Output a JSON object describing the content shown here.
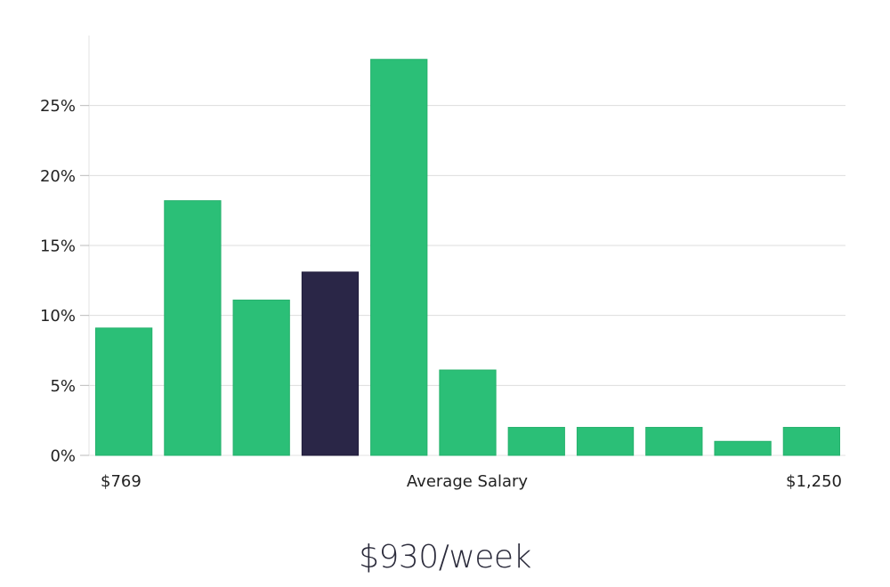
{
  "chart_data": {
    "type": "bar",
    "values": [
      9.1,
      18.2,
      11.1,
      13.1,
      28.3,
      6.1,
      2.0,
      2.0,
      2.0,
      1.0,
      2.0
    ],
    "highlight_index": 3,
    "y_ticks": [
      "0%",
      "5%",
      "10%",
      "15%",
      "20%",
      "25%"
    ],
    "y_tick_values": [
      0,
      5,
      10,
      15,
      20,
      25
    ],
    "ylim": [
      0,
      30
    ],
    "grid": true,
    "x_labels": {
      "left": "$769",
      "center": "Average Salary",
      "right": "$1,250"
    },
    "caption": "$930/week"
  },
  "colors": {
    "bar": "#2bbf77",
    "highlight": "#2a2647",
    "grid": "#dddddd"
  }
}
